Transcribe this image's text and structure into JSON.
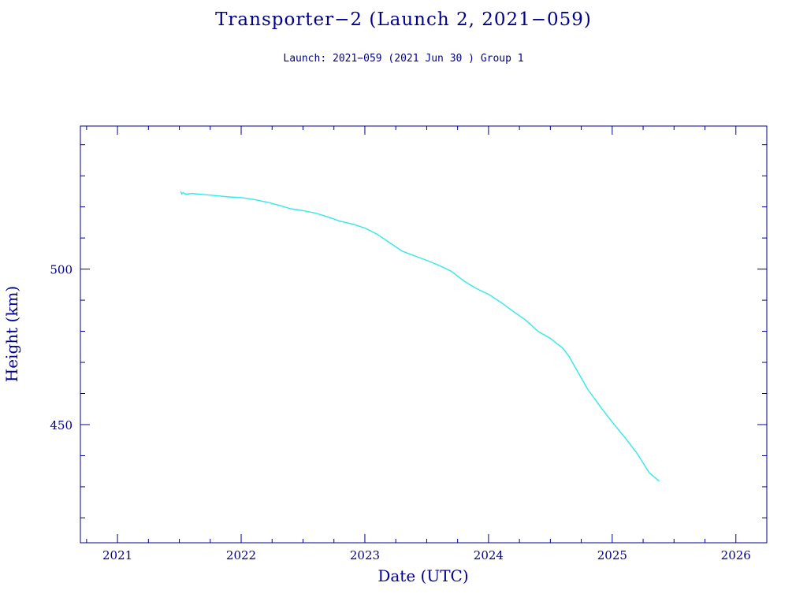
{
  "chart_data": {
    "type": "line",
    "title": "Transporter−2 (Launch 2, 2021−059)",
    "subtitle": "Launch: 2021−059  (2021 Jun 30 )  Group 1",
    "xlabel": "Date (UTC)",
    "ylabel": "Height (km)",
    "xlim": [
      2020.7,
      2026.25
    ],
    "ylim": [
      412,
      546
    ],
    "x_ticks": [
      2021,
      2022,
      2023,
      2024,
      2025,
      2026
    ],
    "x_tick_labels": [
      "2021",
      "2022",
      "2023",
      "2024",
      "2025",
      "2026"
    ],
    "y_ticks": [
      450,
      500
    ],
    "y_tick_labels": [
      "450",
      "500"
    ],
    "grid": false,
    "colors": {
      "axes": "#00008b",
      "text": "#00008b",
      "line": "#33e8e8"
    },
    "series": [
      {
        "x": [
          2021.51,
          2021.52,
          2021.53,
          2021.55,
          2021.6,
          2021.7,
          2021.8,
          2021.9,
          2022.0,
          2022.1,
          2022.2,
          2022.3,
          2022.4,
          2022.5,
          2022.6,
          2022.7,
          2022.8,
          2022.9,
          2023.0,
          2023.1,
          2023.2,
          2023.3,
          2023.4,
          2023.5,
          2023.6,
          2023.7,
          2023.8,
          2023.9,
          2024.0,
          2024.1,
          2024.2,
          2024.3,
          2024.4,
          2024.5,
          2024.6,
          2024.65,
          2024.7,
          2024.8,
          2024.9,
          2025.0,
          2025.1,
          2025.2,
          2025.3,
          2025.38
        ],
        "y": [
          525.0,
          524.2,
          524.6,
          524.1,
          524.3,
          524.0,
          523.6,
          523.2,
          523.0,
          522.4,
          521.6,
          520.6,
          519.4,
          518.8,
          518.0,
          516.8,
          515.4,
          514.5,
          513.2,
          511.2,
          508.5,
          505.8,
          504.3,
          502.8,
          501.2,
          499.3,
          496.2,
          493.8,
          491.9,
          489.3,
          486.4,
          483.6,
          480.0,
          477.7,
          474.6,
          472.0,
          468.5,
          461.5,
          456.0,
          450.8,
          446.0,
          440.8,
          434.5,
          431.8
        ]
      }
    ]
  }
}
